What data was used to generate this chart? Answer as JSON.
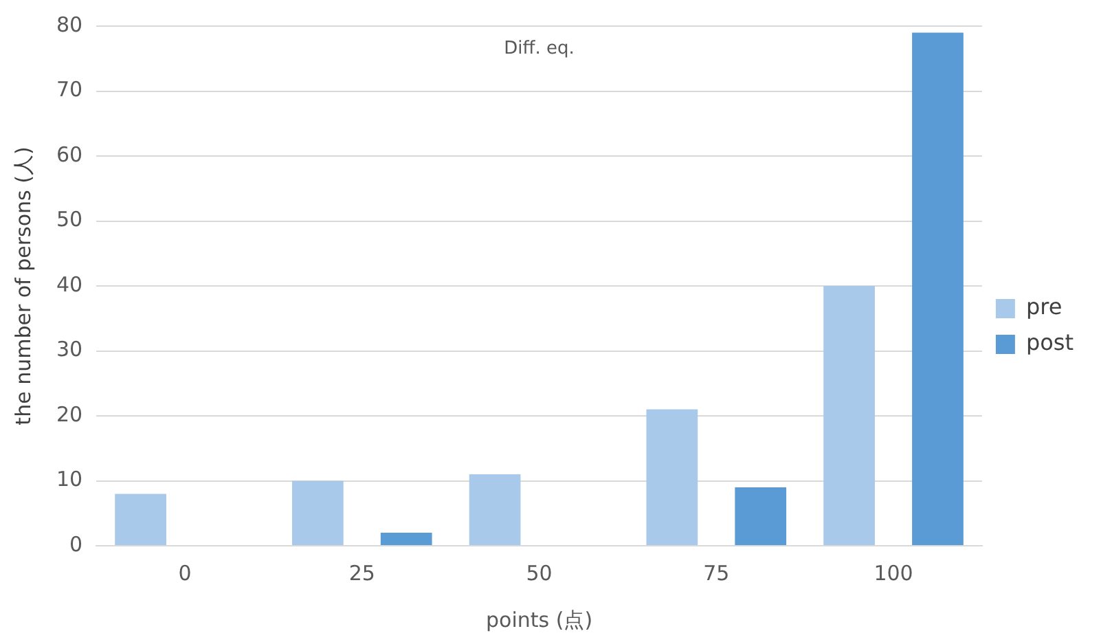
{
  "chart_data": {
    "type": "bar",
    "title": "Diff. eq.",
    "xlabel": "points (点)",
    "ylabel": "the number of persons (人)",
    "categories": [
      "0",
      "25",
      "50",
      "75",
      "100"
    ],
    "series": [
      {
        "name": "pre",
        "color": "#a9c9ea",
        "values": [
          8,
          10,
          11,
          21,
          40
        ]
      },
      {
        "name": "post",
        "color": "#5b9bd5",
        "values": [
          0,
          2,
          0,
          9,
          79
        ]
      }
    ],
    "ylim": [
      0,
      80
    ],
    "yticks": [
      0,
      10,
      20,
      30,
      40,
      50,
      60,
      70,
      80
    ],
    "grid": "y",
    "legend": "right"
  }
}
